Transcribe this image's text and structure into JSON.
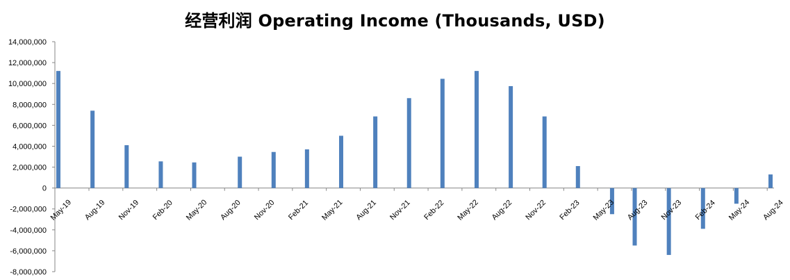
{
  "chart_data": {
    "type": "bar",
    "title": "经营利润 Operating Income (Thousands, USD)",
    "xlabel": "",
    "ylabel": "",
    "ylim": [
      -8000000,
      14000000
    ],
    "y_ticks": [
      "14,000,000",
      "12,000,000",
      "10,000,000",
      "8,000,000",
      "6,000,000",
      "4,000,000",
      "2,000,000",
      "0",
      "-2,000,000",
      "-4,000,000",
      "-6,000,000",
      "-8,000,000"
    ],
    "y_tick_values": [
      14000000,
      12000000,
      10000000,
      8000000,
      6000000,
      4000000,
      2000000,
      0,
      -2000000,
      -4000000,
      -6000000,
      -8000000
    ],
    "x_tick_labels": [
      "May-19",
      "Aug-19",
      "Nov-19",
      "Feb-20",
      "May-20",
      "Aug-20",
      "Nov-20",
      "Feb-21",
      "May-21",
      "Aug-21",
      "Nov-21",
      "Feb-22",
      "May-22",
      "Aug-22",
      "Nov-22",
      "Feb-23",
      "May-23",
      "Aug-23",
      "Nov-23",
      "Feb-24",
      "May-24",
      "Aug-24"
    ],
    "x_tick_dates": [
      "2019-05-01",
      "2019-08-01",
      "2019-11-01",
      "2020-02-01",
      "2020-05-01",
      "2020-08-01",
      "2020-11-01",
      "2021-02-01",
      "2021-05-01",
      "2021-08-01",
      "2021-11-01",
      "2022-02-01",
      "2022-05-01",
      "2022-08-01",
      "2022-11-01",
      "2023-02-01",
      "2023-05-01",
      "2023-08-01",
      "2023-11-01",
      "2024-02-01",
      "2024-05-01",
      "2024-08-01"
    ],
    "points": [
      {
        "date": "2019-05-01",
        "value": 11200000
      },
      {
        "date": "2019-08-01",
        "value": 7400000
      },
      {
        "date": "2019-11-01",
        "value": 4100000
      },
      {
        "date": "2020-02-01",
        "value": 2550000
      },
      {
        "date": "2020-05-01",
        "value": 2450000
      },
      {
        "date": "2020-09-01",
        "value": 3000000
      },
      {
        "date": "2020-12-01",
        "value": 3450000
      },
      {
        "date": "2021-03-01",
        "value": 3700000
      },
      {
        "date": "2021-06-01",
        "value": 5000000
      },
      {
        "date": "2021-09-01",
        "value": 6850000
      },
      {
        "date": "2021-12-01",
        "value": 8600000
      },
      {
        "date": "2022-03-01",
        "value": 10450000
      },
      {
        "date": "2022-06-01",
        "value": 11200000
      },
      {
        "date": "2022-09-01",
        "value": 9750000
      },
      {
        "date": "2022-12-01",
        "value": 6850000
      },
      {
        "date": "2023-03-01",
        "value": 2100000
      },
      {
        "date": "2023-06-01",
        "value": -2500000
      },
      {
        "date": "2023-08-01",
        "value": -5500000
      },
      {
        "date": "2023-11-01",
        "value": -6400000
      },
      {
        "date": "2024-02-01",
        "value": -3900000
      },
      {
        "date": "2024-05-01",
        "value": -1500000
      },
      {
        "date": "2024-08-01",
        "value": 1300000
      }
    ],
    "bar_color": "#4F81BD",
    "grid": false,
    "legend": "none"
  }
}
